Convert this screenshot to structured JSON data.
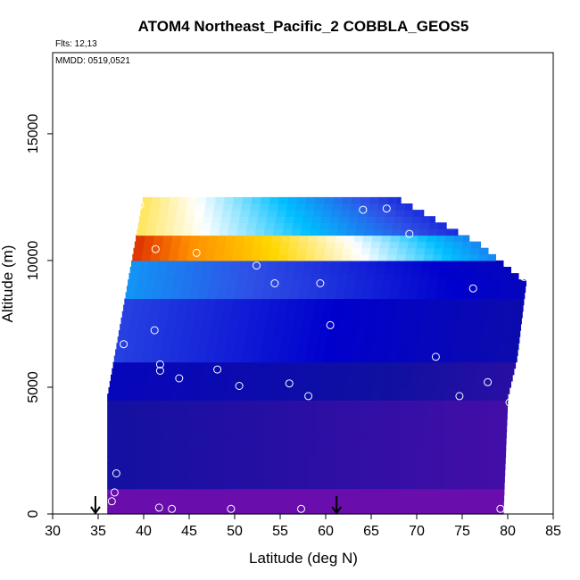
{
  "chart_data": {
    "type": "heatmap",
    "title": "ATOM4 Northeast_Pacific_2 COBBLA_GEOS5",
    "flights_label": "Flts: 12,13",
    "dates_label": "MMDD: 0519,0521",
    "xlabel": "Latitude (deg N)",
    "ylabel": "Altitude (m)",
    "xlim": [
      30,
      85
    ],
    "ylim": [
      0,
      18200
    ],
    "x_ticks": [
      30,
      35,
      40,
      45,
      50,
      55,
      60,
      65,
      70,
      75,
      80,
      85
    ],
    "y_ticks": [
      0,
      5000,
      10000,
      15000
    ],
    "grid": false,
    "legend": "none",
    "colormap": [
      "#6a0dad",
      "#1010a0",
      "#0000cd",
      "#2f50e6",
      "#00bfff",
      "#ffffff",
      "#ffd700",
      "#ff8c00",
      "#cc0000"
    ],
    "field_bands": [
      {
        "alt_min": 0,
        "alt_max": 1000,
        "level": 0.0
      },
      {
        "alt_min": 1000,
        "alt_max": 4500,
        "level": 0.12
      },
      {
        "alt_min": 4500,
        "alt_max": 6000,
        "level": 0.2
      },
      {
        "alt_min": 6000,
        "alt_max": 8500,
        "level": 0.35
      },
      {
        "alt_min": 8500,
        "alt_max": 10000,
        "level": 0.45
      },
      {
        "alt_min": 10000,
        "alt_max": 11000,
        "level": 0.95
      },
      {
        "alt_min": 11000,
        "alt_max": 12500,
        "level": 0.7
      }
    ],
    "field_extent": {
      "lat_start": 36,
      "lat_end_by_alt": [
        [
          0,
          79.5
        ],
        [
          4500,
          80
        ],
        [
          6000,
          81
        ],
        [
          9000,
          82
        ],
        [
          10500,
          77
        ],
        [
          11500,
          72
        ],
        [
          12500,
          67
        ]
      ]
    },
    "flight_points": [
      {
        "lat": 36.5,
        "alt": 500
      },
      {
        "lat": 36.8,
        "alt": 850
      },
      {
        "lat": 37.0,
        "alt": 1600
      },
      {
        "lat": 35.5,
        "alt": 4150
      },
      {
        "lat": 37.8,
        "alt": 6700
      },
      {
        "lat": 41.2,
        "alt": 7250
      },
      {
        "lat": 41.8,
        "alt": 5900
      },
      {
        "lat": 41.8,
        "alt": 5650
      },
      {
        "lat": 43.9,
        "alt": 5350
      },
      {
        "lat": 48.1,
        "alt": 5700
      },
      {
        "lat": 50.5,
        "alt": 5050
      },
      {
        "lat": 56.0,
        "alt": 5150
      },
      {
        "lat": 58.1,
        "alt": 4650
      },
      {
        "lat": 60.5,
        "alt": 7450
      },
      {
        "lat": 59.4,
        "alt": 9100
      },
      {
        "lat": 54.4,
        "alt": 9100
      },
      {
        "lat": 52.4,
        "alt": 9800
      },
      {
        "lat": 45.8,
        "alt": 10300
      },
      {
        "lat": 41.3,
        "alt": 10450
      },
      {
        "lat": 39.6,
        "alt": 12200
      },
      {
        "lat": 64.1,
        "alt": 12000
      },
      {
        "lat": 66.7,
        "alt": 12050
      },
      {
        "lat": 69.2,
        "alt": 11050
      },
      {
        "lat": 76.2,
        "alt": 8900
      },
      {
        "lat": 81.8,
        "alt": 9350
      },
      {
        "lat": 72.1,
        "alt": 6200
      },
      {
        "lat": 77.8,
        "alt": 5200
      },
      {
        "lat": 74.7,
        "alt": 4650
      },
      {
        "lat": 80.2,
        "alt": 4400
      },
      {
        "lat": 79.2,
        "alt": 200
      },
      {
        "lat": 57.3,
        "alt": 200
      },
      {
        "lat": 49.6,
        "alt": 200
      },
      {
        "lat": 43.1,
        "alt": 200
      },
      {
        "lat": 41.7,
        "alt": 250
      }
    ],
    "markers": [
      {
        "lat": 34.7,
        "type": "down-arrow"
      },
      {
        "lat": 61.2,
        "type": "down-arrow"
      }
    ]
  }
}
